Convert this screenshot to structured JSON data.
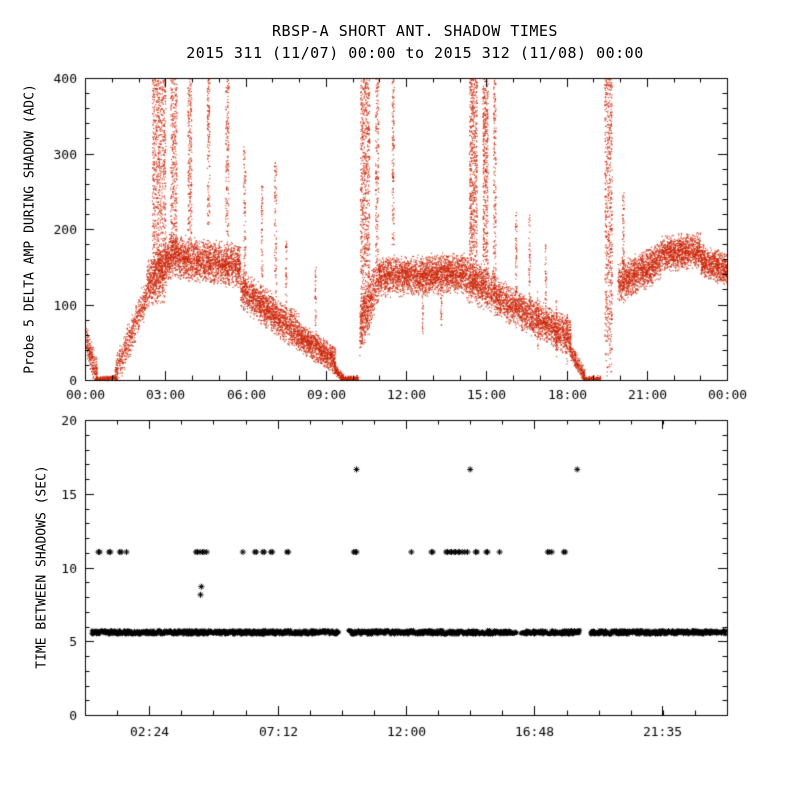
{
  "page": {
    "background": "#ffffff",
    "text_color": "#000000"
  },
  "chart_data": [
    {
      "type": "scatter",
      "title": "RBSP-A SHORT ANT. SHADOW TIMES",
      "subtitle": "2015 311 (11/07) 00:00 to 2015 312 (11/08) 00:00",
      "ylabel": "Probe 5 DELTA AMP DURING SHADOW (ADC)",
      "xlabel": "",
      "marker": "dot",
      "marker_color": "#cc2200",
      "x_unit": "hours",
      "xlim": [
        0,
        24
      ],
      "ylim": [
        0,
        400
      ],
      "grid": false,
      "xticks": [
        {
          "h": 0,
          "label": "00:00"
        },
        {
          "h": 3,
          "label": "03:00"
        },
        {
          "h": 6,
          "label": "06:00"
        },
        {
          "h": 9,
          "label": "09:00"
        },
        {
          "h": 12,
          "label": "12:00"
        },
        {
          "h": 15,
          "label": "15:00"
        },
        {
          "h": 18,
          "label": "18:00"
        },
        {
          "h": 21,
          "label": "21:00"
        },
        {
          "h": 24,
          "label": "00:00"
        }
      ],
      "yticks": [
        {
          "v": 0,
          "label": "0"
        },
        {
          "v": 100,
          "label": "100"
        },
        {
          "v": 200,
          "label": "200"
        },
        {
          "v": 300,
          "label": "300"
        },
        {
          "v": 400,
          "label": "400"
        }
      ],
      "minor_x_step": 1,
      "minor_y_step": 20,
      "bands": [
        {
          "t0": 0.0,
          "t1": 0.45,
          "y0": 55,
          "y1": 5,
          "s": 28,
          "n": 260
        },
        {
          "t0": 0.4,
          "t1": 1.15,
          "y0": 2,
          "y1": 3,
          "s": 5,
          "n": 160
        },
        {
          "t0": 1.1,
          "t1": 2.3,
          "y0": 6,
          "y1": 115,
          "s": 34,
          "n": 520
        },
        {
          "t0": 2.3,
          "t1": 3.2,
          "y0": 125,
          "y1": 165,
          "s": 46,
          "n": 700
        },
        {
          "t0": 3.2,
          "t1": 5.8,
          "y0": 165,
          "y1": 150,
          "s": 40,
          "n": 1900
        },
        {
          "t0": 5.8,
          "t1": 8.0,
          "y0": 122,
          "y1": 62,
          "s": 36,
          "n": 1500
        },
        {
          "t0": 8.0,
          "t1": 9.35,
          "y0": 58,
          "y1": 26,
          "s": 26,
          "n": 900
        },
        {
          "t0": 9.3,
          "t1": 9.65,
          "y0": 16,
          "y1": 2,
          "s": 9,
          "n": 150
        },
        {
          "t0": 9.6,
          "t1": 10.2,
          "y0": 2,
          "y1": 3,
          "s": 5,
          "n": 150
        },
        {
          "t0": 10.25,
          "t1": 11.0,
          "y0": 70,
          "y1": 140,
          "s": 48,
          "n": 520
        },
        {
          "t0": 11.0,
          "t1": 14.2,
          "y0": 138,
          "y1": 142,
          "s": 36,
          "n": 2300
        },
        {
          "t0": 14.2,
          "t1": 15.3,
          "y0": 136,
          "y1": 116,
          "s": 40,
          "n": 720
        },
        {
          "t0": 15.3,
          "t1": 18.15,
          "y0": 112,
          "y1": 56,
          "s": 34,
          "n": 1800
        },
        {
          "t0": 18.1,
          "t1": 18.7,
          "y0": 42,
          "y1": 3,
          "s": 16,
          "n": 260
        },
        {
          "t0": 18.6,
          "t1": 19.25,
          "y0": 2,
          "y1": 3,
          "s": 5,
          "n": 130
        },
        {
          "t0": 19.9,
          "t1": 21.5,
          "y0": 128,
          "y1": 158,
          "s": 36,
          "n": 1150
        },
        {
          "t0": 21.5,
          "t1": 23.0,
          "y0": 168,
          "y1": 172,
          "s": 32,
          "n": 1050
        },
        {
          "t0": 23.0,
          "t1": 24.0,
          "y0": 158,
          "y1": 146,
          "s": 30,
          "n": 700
        }
      ],
      "spikes": [
        {
          "t": 2.75,
          "w": 0.5,
          "ymin": 100,
          "ymax": 400,
          "n": 850
        },
        {
          "t": 3.3,
          "w": 0.25,
          "ymin": 150,
          "ymax": 400,
          "n": 360
        },
        {
          "t": 3.9,
          "w": 0.15,
          "ymin": 180,
          "ymax": 400,
          "n": 210
        },
        {
          "t": 4.6,
          "w": 0.1,
          "ymin": 200,
          "ymax": 400,
          "n": 130
        },
        {
          "t": 5.3,
          "w": 0.12,
          "ymin": 150,
          "ymax": 400,
          "n": 160
        },
        {
          "t": 5.95,
          "w": 0.08,
          "ymin": 120,
          "ymax": 310,
          "n": 85
        },
        {
          "t": 6.6,
          "w": 0.06,
          "ymin": 100,
          "ymax": 260,
          "n": 60
        },
        {
          "t": 7.1,
          "w": 0.08,
          "ymin": 80,
          "ymax": 290,
          "n": 85
        },
        {
          "t": 7.5,
          "w": 0.05,
          "ymin": 70,
          "ymax": 185,
          "n": 45
        },
        {
          "t": 8.6,
          "w": 0.05,
          "ymin": 50,
          "ymax": 150,
          "n": 40
        },
        {
          "t": 10.45,
          "w": 0.35,
          "ymin": 60,
          "ymax": 400,
          "n": 750
        },
        {
          "t": 10.9,
          "w": 0.12,
          "ymin": 150,
          "ymax": 400,
          "n": 160
        },
        {
          "t": 11.5,
          "w": 0.08,
          "ymin": 160,
          "ymax": 400,
          "n": 130
        },
        {
          "t": 12.6,
          "w": 0.05,
          "ymin": 60,
          "ymax": 140,
          "n": 40
        },
        {
          "t": 13.3,
          "w": 0.05,
          "ymin": 70,
          "ymax": 140,
          "n": 40
        },
        {
          "t": 14.5,
          "w": 0.3,
          "ymin": 120,
          "ymax": 400,
          "n": 620
        },
        {
          "t": 14.95,
          "w": 0.2,
          "ymin": 130,
          "ymax": 400,
          "n": 420
        },
        {
          "t": 15.3,
          "w": 0.1,
          "ymin": 120,
          "ymax": 400,
          "n": 160
        },
        {
          "t": 16.1,
          "w": 0.06,
          "ymin": 90,
          "ymax": 230,
          "n": 60
        },
        {
          "t": 16.6,
          "w": 0.06,
          "ymin": 80,
          "ymax": 220,
          "n": 55
        },
        {
          "t": 16.9,
          "w": 0.04,
          "ymin": 40,
          "ymax": 120,
          "n": 30
        },
        {
          "t": 17.2,
          "w": 0.05,
          "ymin": 70,
          "ymax": 180,
          "n": 40
        },
        {
          "t": 17.6,
          "w": 0.05,
          "ymin": 30,
          "ymax": 110,
          "n": 40
        },
        {
          "t": 18.0,
          "w": 0.04,
          "ymin": 20,
          "ymax": 90,
          "n": 30
        },
        {
          "t": 19.55,
          "w": 0.28,
          "ymin": 5,
          "ymax": 400,
          "n": 600
        },
        {
          "t": 20.1,
          "w": 0.07,
          "ymin": 100,
          "ymax": 250,
          "n": 65
        }
      ]
    },
    {
      "type": "scatter",
      "title": "",
      "ylabel": "TIME BETWEEN SHADOWS (SEC)",
      "xlabel": "",
      "marker": "asterisk",
      "marker_color": "#000000",
      "x_unit": "hours",
      "xlim": [
        0,
        24
      ],
      "ylim": [
        0,
        20
      ],
      "grid": false,
      "xticks": [
        {
          "h": 2.4,
          "label": "02:24"
        },
        {
          "h": 7.2,
          "label": "07:12"
        },
        {
          "h": 12.0,
          "label": "12:00"
        },
        {
          "h": 16.8,
          "label": "16:48"
        },
        {
          "h": 21.58,
          "label": "21:35"
        }
      ],
      "yticks": [
        {
          "v": 0,
          "label": "0"
        },
        {
          "v": 5,
          "label": "5"
        },
        {
          "v": 10,
          "label": "10"
        },
        {
          "v": 15,
          "label": "15"
        },
        {
          "v": 20,
          "label": "20"
        }
      ],
      "minor_x_step": 1.2,
      "minor_y_step": 1,
      "baseline": {
        "y": 5.6,
        "spread": 0.3,
        "step": 0.018,
        "segments": [
          [
            0.25,
            9.5
          ],
          [
            9.85,
            16.15
          ],
          [
            16.3,
            18.5
          ],
          [
            18.9,
            23.97
          ]
        ]
      },
      "upper_rows": [
        {
          "y": 11.05,
          "t": [
            0.5,
            0.55,
            0.9,
            0.95,
            1.3,
            1.35,
            1.55,
            4.15,
            4.2,
            4.3,
            4.4,
            4.45,
            4.55,
            5.9,
            6.35,
            6.4,
            6.65,
            6.7,
            6.95,
            7.0,
            7.55,
            7.6,
            10.05,
            10.1,
            10.15,
            12.2,
            12.95,
            13.0,
            13.5,
            13.55,
            13.65,
            13.7,
            13.8,
            13.85,
            13.95,
            14.0,
            14.1,
            14.2,
            14.3,
            14.6,
            14.65,
            15.0,
            15.05,
            15.5,
            17.3,
            17.35,
            17.45,
            17.9,
            17.95
          ]
        },
        {
          "y": 16.65,
          "t": [
            10.15,
            14.4,
            18.4
          ]
        }
      ],
      "extra_points": [
        {
          "t": 4.35,
          "y": 8.7
        },
        {
          "t": 4.32,
          "y": 8.15
        }
      ]
    }
  ]
}
